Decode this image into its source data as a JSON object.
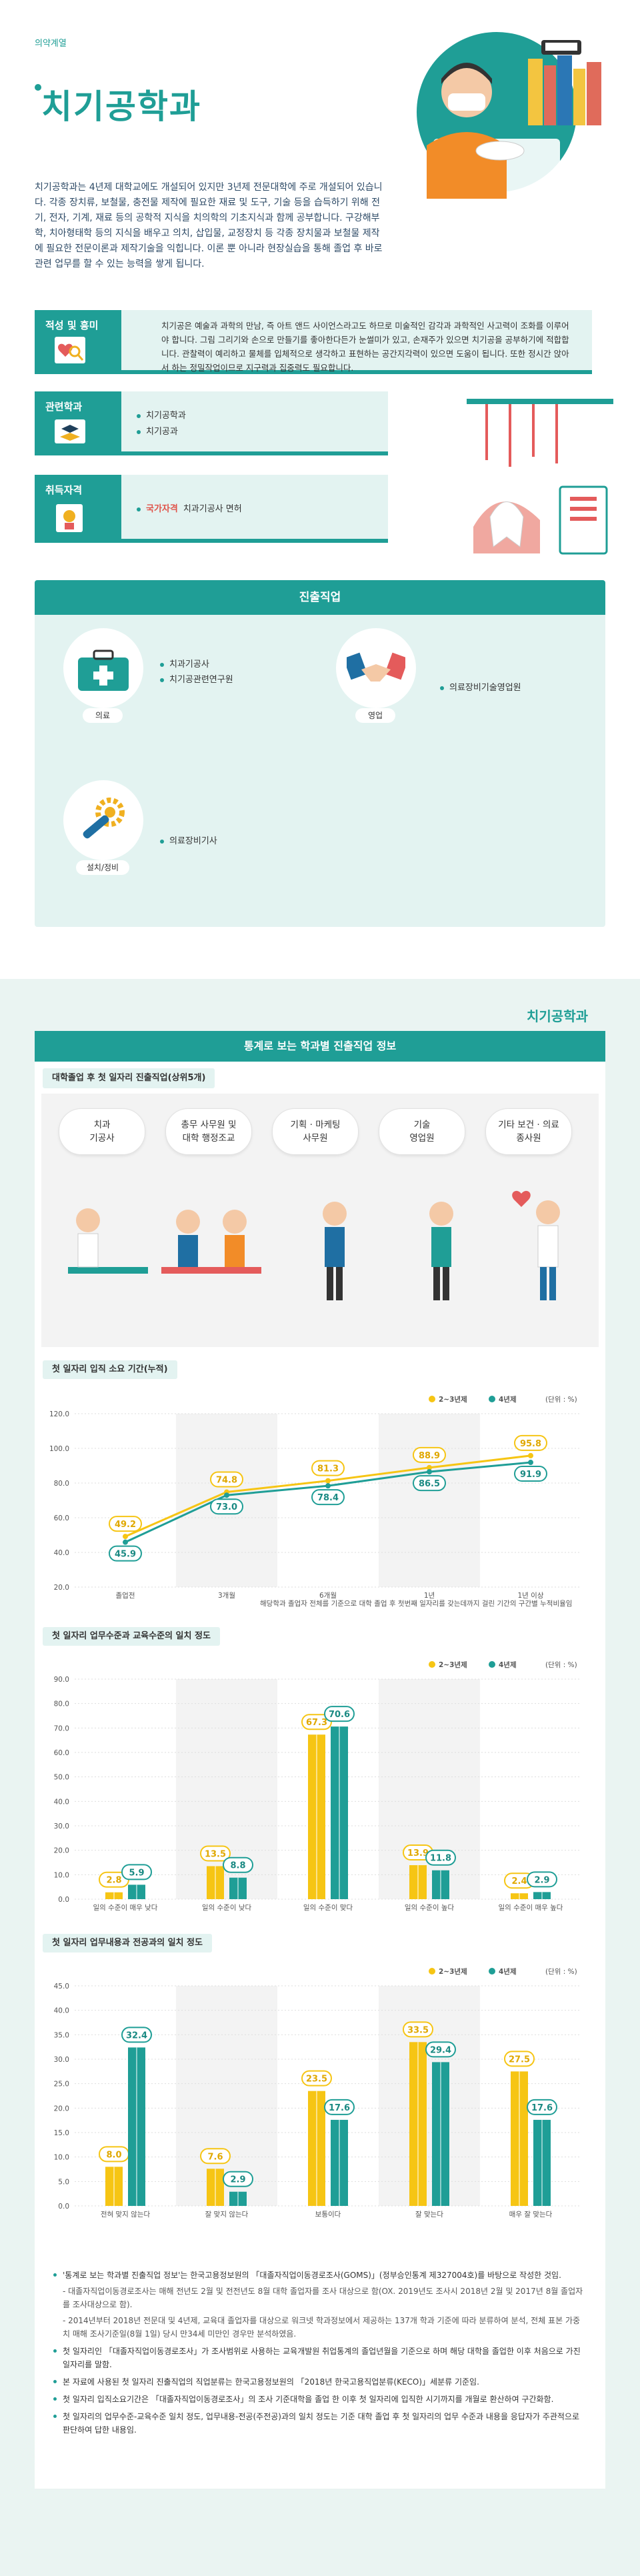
{
  "header": {
    "category": "의약계열",
    "title": "치기공학과"
  },
  "intro": "치기공학과는 4년제 대학교에도 개설되어 있지만 3년제 전문대학에 주로 개설되어 있습니다. 각종 장치류, 보철물, 충전물 제작에 필요한 재료 및 도구, 기술 등을 습득하기 위해 전기, 전자, 기계, 재료 등의 공학적 지식을 치의학의 기초지식과 함께 공부합니다. 구강해부학, 치아형태학 등의 지식을 배우고 의치, 삽입물, 교정장치 등 각종 장치물과 보철물 제작에 필요한 전문이론과 제작기술을 익힙니다. 이론 뿐 아니라 현장실습을 통해 졸업 후 바로 관련 업무를 할 수 있는 능력을 쌓게 됩니다.",
  "aptitude": {
    "label": "적성 및 흥미",
    "text": "치기공은 예술과 과학의 만남, 즉 아트 앤드 사이언스라고도 하므로 미술적인 감각과 과학적인 사고력이 조화를 이루어야 합니다. 그림 그리기와 손으로 만들기를 좋아한다든가 눈썰미가 있고, 손재주가 있으면 치기공을 공부하기에 적합합니다. 관찰력이 예리하고 물체를 입체적으로 생각하고 표현하는 공간지각력이 있으면 도움이 됩니다. 또한 정시간 앉아서 하는 정밀작업이므로 지구력과 집중력도 필요합니다."
  },
  "related": {
    "label": "관련학과",
    "items": [
      "치기공학과",
      "치기공과"
    ]
  },
  "license": {
    "label": "취득자격",
    "tag": "국가자격",
    "value": "치과기공사 면허"
  },
  "careers": {
    "title": "진출직업",
    "groups": [
      {
        "name": "의료",
        "items": [
          "치과기공사",
          "치기공관련연구원"
        ]
      },
      {
        "name": "영업",
        "items": [
          "의료장비기술영업원"
        ]
      },
      {
        "name": "설치/정비",
        "items": [
          "의료장비기사"
        ]
      }
    ]
  },
  "stats": {
    "brand": "치기공학과",
    "title": "통계로 보는 학과별 진출직업 정보",
    "top_title": "대학졸업 후 첫 일자리 진출직업(상위5개)",
    "top_jobs": [
      "치과\n기공사",
      "총무 사무원 및\n대학 행정조교",
      "기획 · 마케팅\n사무원",
      "기술\n영업원",
      "기타 보건 · 의료\n종사원"
    ],
    "legend": {
      "a": "2~3년제",
      "b": "4년제",
      "unit": "(단위 : %)"
    },
    "footnote1": "해당학과 졸업자 전체를 기준으로 대학 졸업 후 첫번째 일자리를 갖는데까지 걸린 기간의 구간별 누적비율임"
  },
  "chart_data": [
    {
      "type": "line",
      "title": "첫 일자리 입직 소요 기간(누적)",
      "categories": [
        "졸업전",
        "3개월",
        "6개월",
        "1년",
        "1년 이상"
      ],
      "series": [
        {
          "name": "2~3년제",
          "values": [
            49.2,
            74.8,
            81.3,
            88.9,
            95.8
          ]
        },
        {
          "name": "4년제",
          "values": [
            45.9,
            73.0,
            78.4,
            86.5,
            91.9
          ]
        }
      ],
      "ylim": [
        20,
        120
      ],
      "yticks": [
        "20.0",
        "40.0",
        "60.0",
        "80.0",
        "100.0",
        "120.0"
      ]
    },
    {
      "type": "bar",
      "title": "첫 일자리 업무수준과 교육수준의 일치 정도",
      "categories": [
        "일의 수준이 매우 낮다",
        "일의 수준이 낮다",
        "일의 수준이 맞다",
        "일의 수준이 높다",
        "일의 수준이 매우 높다"
      ],
      "series": [
        {
          "name": "2~3년제",
          "values": [
            2.8,
            13.5,
            67.3,
            13.9,
            2.4
          ]
        },
        {
          "name": "4년제",
          "values": [
            5.9,
            8.8,
            70.6,
            11.8,
            2.9
          ]
        }
      ],
      "ylim": [
        0,
        90
      ],
      "yticks": [
        "0.0",
        "10.0",
        "20.0",
        "30.0",
        "40.0",
        "50.0",
        "60.0",
        "70.0",
        "80.0",
        "90.0"
      ]
    },
    {
      "type": "bar",
      "title": "첫 일자리 업무내용과 전공과의 일치 정도",
      "categories": [
        "전혀 맞지 않는다",
        "잘 맞지 않는다",
        "보통이다",
        "잘 맞는다",
        "매우 잘 맞는다"
      ],
      "series": [
        {
          "name": "2~3년제",
          "values": [
            8.0,
            7.6,
            23.5,
            33.5,
            27.5
          ]
        },
        {
          "name": "4년제",
          "values": [
            32.4,
            2.9,
            17.6,
            29.4,
            17.6
          ]
        }
      ],
      "ylim": [
        0,
        45
      ],
      "yticks": [
        "0.0",
        "5.0",
        "10.0",
        "15.0",
        "20.0",
        "25.0",
        "30.0",
        "35.0",
        "40.0",
        "45.0"
      ]
    }
  ],
  "notes": [
    "'통계로 보는 학과별 진출직업 정보'는 한국고용정보원의 「대졸자직업이동경로조사(GOMS)」(정부승인통계 제327004호)를 바탕으로 작성한 것임.",
    "- 대졸자직업이동경로조사는 매해 전년도 2월 및 전전년도 8월 대학 졸업자를 조사 대상으로 함(OX. 2019년도 조사시 2018년 2월 및 2017년 8월 졸업자를 조사대상으로 함).",
    "- 2014년부터 2018년 전문대 및 4년제, 교육대 졸업자를 대상으로 워크넷 학과정보에서 제공하는 137개 학과 기준에 따라 분류하여 분석, 전체 표본 가중치 매해 조사기준일(8월 1일) 당시 만34세 미만인 경우만 분석하였음.",
    "첫 일자리인 「대졸자직업이동경로조사」가 조사범위로 사용하는 교육개발원 취업통계의 졸업년월을 기준으로 하며 해당 대학을 졸업한 이후 처음으로 가진 일자리를 말함.",
    "본 자료에 사용된 첫 일자리 진출직업의 직업분류는 한국고용정보원의 「2018년 한국고용직업분류(KECO)」세분류 기준임.",
    "첫 일자리 입직소요기간은 「대졸자직업이동경로조사」의 조사 기준대학을 졸업 한 이후 첫 일자리에 입직한 시기까지를 개월로 환산하여 구간화함.",
    "첫 일자리의 업무수준-교육수준 일치 정도, 업무내용-전공(주전공)과의 일치 정도는 기준 대학 졸업 후 첫 일자리의 업무 수준과 내용을 응답자가 주관적으로 판단하여 답한 내용임."
  ],
  "colors": {
    "teal": "#1f9e96",
    "yellow": "#f6c514",
    "lightTeal": "#e3f3f1"
  }
}
